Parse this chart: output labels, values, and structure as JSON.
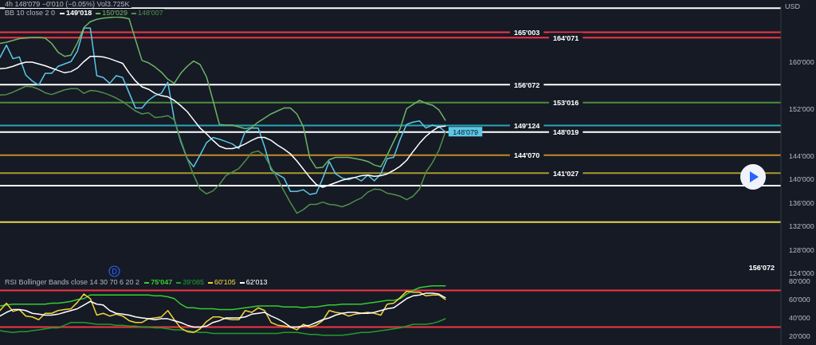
{
  "chart_data": [
    {
      "type": "line",
      "title": "4h 148'079 −0'010 (−0.05%) Vol3.725K",
      "subtitle": "BB 10 close 2 0",
      "ylabel": "USD",
      "categories": [
        null,
        null,
        null,
        null,
        null,
        null,
        null,
        null,
        null,
        null,
        null,
        null,
        null,
        null,
        null,
        null,
        null,
        null,
        null,
        null,
        null,
        null,
        null,
        null,
        null,
        null,
        null,
        null,
        null,
        null,
        null,
        null,
        null,
        null,
        null,
        null,
        null,
        null,
        null,
        null,
        null,
        null,
        null,
        null,
        null,
        null,
        null,
        null,
        null,
        null,
        null,
        null,
        null,
        null,
        null,
        null,
        null,
        null,
        null,
        null,
        null,
        null,
        null,
        null,
        null,
        null,
        null,
        null,
        null,
        null,
        null,
        null,
        null,
        null,
        null,
        null,
        null,
        null,
        null,
        null,
        null,
        null,
        null,
        null,
        null,
        null,
        null,
        null,
        null,
        null,
        null,
        null,
        null,
        null,
        null,
        null,
        null,
        null,
        null,
        null,
        null,
        null,
        null,
        null,
        null,
        null,
        null,
        null,
        null,
        null,
        null,
        null,
        null,
        null,
        null,
        null,
        null,
        null,
        null,
        null,
        null,
        null
      ],
      "series": [
        {
          "color": "#5ac8e6",
          "values": [
            160700,
            162800,
            160500,
            160800,
            157700,
            156700,
            156000,
            158000,
            158000,
            159200,
            159600,
            160000,
            161800,
            165700,
            165700,
            157600,
            157300,
            156300,
            157600,
            157300,
            154700,
            152100,
            152100,
            153400,
            154200,
            154600,
            156500,
            150200,
            146400,
            143500,
            142100,
            144100,
            146200,
            147100,
            146800,
            146400,
            146000,
            145200,
            148100,
            148700,
            148700,
            145500,
            141600,
            140800,
            140200,
            137900,
            137900,
            138200,
            137400,
            137600,
            140100,
            143000,
            140900,
            140200,
            139900,
            140300,
            139700,
            140700,
            139700,
            140900,
            143500,
            143700,
            146800,
            149300,
            149700,
            149900,
            148700,
            149200,
            148900,
            148079,
            null,
            null,
            null,
            null,
            null,
            null,
            null,
            null,
            null,
            null,
            null,
            null,
            null,
            null,
            null,
            null,
            null,
            null,
            null,
            null,
            null,
            null,
            null,
            null,
            null,
            null,
            null,
            null,
            null,
            null,
            null,
            null,
            null,
            null,
            null,
            null,
            null,
            null,
            null,
            null,
            null,
            null,
            null,
            null,
            null,
            null,
            null,
            null,
            null,
            null,
            null,
            null
          ],
          "value_labels": [
            null,
            null,
            null,
            null,
            null,
            null,
            null,
            null,
            null,
            null,
            null,
            null,
            null,
            null,
            null,
            null,
            null,
            null,
            null,
            null,
            null,
            null,
            null,
            null,
            null,
            null,
            null,
            null,
            null,
            null,
            null,
            null,
            null,
            null,
            null,
            null,
            null,
            null,
            null,
            null,
            null,
            null,
            null,
            null,
            null,
            null,
            null,
            null,
            null,
            null,
            null,
            null,
            null,
            null,
            null,
            null,
            null,
            null,
            null,
            null,
            null,
            null,
            null,
            null,
            null,
            null,
            null,
            null,
            null,
            "148'079",
            null,
            null,
            null,
            null,
            null,
            null,
            null,
            null,
            null,
            null,
            null,
            null,
            null,
            null,
            null,
            null,
            null,
            null,
            null,
            null,
            null,
            null,
            null,
            null,
            null,
            null,
            null,
            null,
            null,
            null,
            null,
            null,
            null,
            null,
            null,
            null,
            null,
            null,
            null,
            null,
            null,
            null,
            null,
            null,
            null,
            null,
            null,
            null,
            null,
            null,
            null,
            null
          ]
        },
        {
          "name": "149'018",
          "color": "#ffffff",
          "values": [
            158800,
            158900,
            159200,
            159600,
            159900,
            159900,
            159600,
            159300,
            158900,
            158500,
            158100,
            158300,
            158900,
            160000,
            160900,
            160900,
            160800,
            160500,
            160100,
            159700,
            158100,
            156700,
            155700,
            155300,
            154600,
            154200,
            154000,
            153400,
            152500,
            151500,
            150100,
            148700,
            147700,
            146600,
            145600,
            145200,
            145200,
            145500,
            146000,
            146600,
            147100,
            147100,
            146600,
            145800,
            145100,
            144300,
            143100,
            141700,
            140300,
            139100,
            138600,
            139000,
            139400,
            139800,
            140100,
            140300,
            140600,
            140700,
            140500,
            140600,
            140900,
            141500,
            142200,
            143200,
            144700,
            146100,
            147300,
            148200,
            148900,
            149018,
            null,
            null,
            null,
            null,
            null,
            null,
            null,
            null,
            null,
            null,
            null,
            null,
            null,
            null,
            null,
            null,
            null,
            null,
            null,
            null,
            null,
            null,
            null,
            null,
            null,
            null,
            null,
            null,
            null,
            null,
            null,
            null,
            null,
            null,
            null,
            null,
            null,
            null,
            null,
            null,
            null,
            null,
            null,
            null,
            null,
            null,
            null,
            null,
            null,
            null,
            null,
            null
          ]
        },
        {
          "name": "150'029",
          "color": "#6cb565",
          "values": [
            163100,
            163300,
            163600,
            163900,
            164000,
            164100,
            164100,
            164000,
            163100,
            161600,
            160900,
            161100,
            163200,
            165800,
            166800,
            167200,
            167400,
            167500,
            167600,
            167500,
            167300,
            163700,
            160200,
            159800,
            159100,
            158200,
            157000,
            156300,
            158000,
            159200,
            160100,
            159500,
            157400,
            153400,
            149300,
            149200,
            149200,
            148900,
            148600,
            148800,
            149700,
            150400,
            151100,
            151600,
            152100,
            152100,
            151100,
            148900,
            143600,
            141900,
            142000,
            143300,
            143700,
            143700,
            143700,
            143500,
            143300,
            143000,
            142400,
            142100,
            144100,
            146400,
            148600,
            152000,
            152700,
            153400,
            152900,
            152600,
            151800,
            150029,
            null,
            null,
            null,
            null,
            null,
            null,
            null,
            null,
            null,
            null,
            null,
            null,
            null,
            null,
            null,
            null,
            null,
            null,
            null,
            null,
            null,
            null,
            null,
            null,
            null,
            null,
            null,
            null,
            null,
            null,
            null,
            null,
            null,
            null,
            null,
            null,
            null,
            null,
            null,
            null,
            null,
            null,
            null,
            null,
            null,
            null,
            null,
            null,
            null,
            null,
            null,
            null
          ]
        },
        {
          "name": "148'007",
          "color": "#4f8f4a",
          "values": [
            154300,
            154400,
            154800,
            155300,
            155800,
            155700,
            155300,
            154700,
            154400,
            154800,
            155200,
            155400,
            155400,
            154600,
            155100,
            155000,
            154700,
            154300,
            153800,
            153200,
            152400,
            151600,
            151100,
            151300,
            150500,
            150600,
            150800,
            150100,
            146700,
            143500,
            140700,
            138300,
            137500,
            138000,
            139100,
            140600,
            141200,
            141800,
            143100,
            144500,
            144800,
            144000,
            142000,
            140100,
            138000,
            136000,
            134200,
            134800,
            135700,
            135700,
            136100,
            135700,
            135600,
            135300,
            135700,
            136300,
            136800,
            137800,
            138300,
            138200,
            137600,
            137400,
            137100,
            136500,
            137100,
            138300,
            141200,
            142800,
            144900,
            148007,
            null,
            null,
            null,
            null,
            null,
            null,
            null,
            null,
            null,
            null,
            null,
            null,
            null,
            null,
            null,
            null,
            null,
            null,
            null,
            null,
            null,
            null,
            null,
            null,
            null,
            null,
            null,
            null,
            null,
            null,
            null,
            null,
            null,
            null,
            null,
            null,
            null,
            null,
            null,
            null,
            null,
            null,
            null,
            null,
            null,
            null,
            null,
            null,
            null,
            null,
            null,
            null
          ]
        }
      ],
      "ylim": [
        123300,
        169400
      ],
      "yticks": [
        {
          "value": 124000,
          "label": "124'000"
        },
        {
          "value": 128000,
          "label": "128'000"
        },
        {
          "value": 132000,
          "label": "132'000"
        },
        {
          "value": 136000,
          "label": "136'000"
        },
        {
          "value": 140000,
          "label": "140'000"
        },
        {
          "value": 144000,
          "label": "144'000"
        },
        {
          "value": 152000,
          "label": "152'000"
        },
        {
          "value": 160000,
          "label": "160'000"
        }
      ],
      "ref_lines": [
        {
          "axis": "y",
          "value": 169100,
          "color": "#ffffff"
        },
        {
          "axis": "y",
          "value": 165003,
          "label": "165'003",
          "color": "#f23645"
        },
        {
          "axis": "y",
          "value": 164071,
          "label": "164'071",
          "color": "#f23645"
        },
        {
          "axis": "y",
          "value": 156072,
          "label": "156'072",
          "color": "#ffffff"
        },
        {
          "axis": "y",
          "value": 153016,
          "label": "153'016",
          "color": "#4d8f3a"
        },
        {
          "axis": "y",
          "value": 149124,
          "label": "149'124",
          "color": "#2aa3b8"
        },
        {
          "axis": "y",
          "value": 148019,
          "label": "148'019",
          "color": "#ffffff"
        },
        {
          "axis": "y",
          "value": 144070,
          "label": "144'070",
          "color": "#c08a24"
        },
        {
          "axis": "y",
          "value": 141027,
          "label": "141'027",
          "color": "#a89a2c"
        },
        {
          "axis": "y",
          "value": 138900,
          "color": "#ffffff"
        },
        {
          "axis": "y",
          "value": 132700,
          "color": "#e6d84a"
        }
      ],
      "annotations": [
        "156'072"
      ],
      "legend": "top left",
      "tick_labels": "y"
    },
    {
      "type": "line",
      "title": "RSI Bollinger Bands close 14 30 70 6 20 2",
      "categories": [
        null,
        null,
        null,
        null,
        null,
        null,
        null,
        null,
        null,
        null,
        null,
        null,
        null,
        null,
        null,
        null,
        null,
        null,
        null,
        null,
        null,
        null,
        null,
        null,
        null,
        null,
        null,
        null,
        null,
        null,
        null,
        null,
        null,
        null,
        null,
        null,
        null,
        null,
        null,
        null,
        null,
        null,
        null,
        null,
        null,
        null,
        null,
        null,
        null,
        null,
        null,
        null,
        null,
        null,
        null,
        null,
        null,
        null,
        null,
        null,
        null,
        null,
        null,
        null,
        null,
        null,
        null,
        null,
        null,
        null,
        null,
        null,
        null,
        null,
        null,
        null,
        null,
        null,
        null,
        null,
        null,
        null,
        null,
        null,
        null,
        null,
        null,
        null,
        null,
        null,
        null,
        null,
        null,
        null,
        null,
        null,
        null,
        null,
        null,
        null,
        null,
        null,
        null,
        null,
        null,
        null,
        null,
        null,
        null,
        null,
        null,
        null,
        null,
        null,
        null,
        null,
        null,
        null,
        null,
        null,
        null,
        null
      ],
      "series": [
        {
          "name": "75'047",
          "color": "#33cc33",
          "values": [
            53000,
            54000,
            55000,
            55000,
            55000,
            55000,
            55000,
            55000,
            56000,
            56000,
            57000,
            58000,
            60000,
            61000,
            65000,
            65000,
            65000,
            65000,
            65000,
            65000,
            65000,
            65000,
            65000,
            65000,
            64000,
            64000,
            63000,
            61000,
            55000,
            51000,
            51000,
            50000,
            50000,
            50000,
            49000,
            49000,
            49000,
            50000,
            51000,
            52000,
            53000,
            53000,
            53000,
            53000,
            52000,
            52000,
            52000,
            51000,
            52000,
            52000,
            53000,
            54000,
            54000,
            55000,
            55000,
            55000,
            55000,
            56000,
            57000,
            58000,
            59000,
            59000,
            61000,
            66000,
            70000,
            73000,
            74000,
            75000,
            75000,
            75047,
            null,
            null,
            null,
            null,
            null,
            null,
            null,
            null,
            null,
            null,
            null,
            null,
            null,
            null,
            null,
            null,
            null,
            null,
            null,
            null,
            null,
            null,
            null,
            null,
            null,
            null,
            null,
            null,
            null,
            null,
            null,
            null,
            null,
            null,
            null,
            null,
            null,
            null,
            null,
            null,
            null,
            null,
            null,
            null,
            null,
            null,
            null,
            null,
            null,
            null,
            null,
            null
          ]
        },
        {
          "name": "39'085",
          "color": "#1f9e2a",
          "values": [
            26000,
            25000,
            24000,
            25000,
            25000,
            26000,
            27000,
            28000,
            29000,
            29000,
            32000,
            35000,
            35000,
            35000,
            34000,
            33000,
            33000,
            33000,
            32000,
            32000,
            31000,
            31000,
            30000,
            30000,
            29000,
            29000,
            28000,
            27000,
            27000,
            26000,
            25000,
            24000,
            24000,
            23000,
            23000,
            23000,
            23000,
            23000,
            23000,
            23000,
            23000,
            23000,
            23000,
            23000,
            24000,
            24000,
            24000,
            23000,
            22000,
            22000,
            21000,
            21000,
            21000,
            21000,
            22000,
            23000,
            24000,
            24000,
            25000,
            26000,
            27000,
            28000,
            29000,
            31000,
            33000,
            33000,
            33000,
            34000,
            36000,
            39085,
            null,
            null,
            null,
            null,
            null,
            null,
            null,
            null,
            null,
            null,
            null,
            null,
            null,
            null,
            null,
            null,
            null,
            null,
            null,
            null,
            null,
            null,
            null,
            null,
            null,
            null,
            null,
            null,
            null,
            null,
            null,
            null,
            null,
            null,
            null,
            null,
            null,
            null,
            null,
            null,
            null,
            null,
            null,
            null,
            null,
            null,
            null,
            null,
            null,
            null,
            null,
            null
          ]
        },
        {
          "name": "60'105",
          "color": "#f0d43a",
          "values": [
            48000,
            56000,
            47000,
            49000,
            42000,
            41000,
            38000,
            45000,
            45000,
            48000,
            49000,
            50000,
            57000,
            66000,
            61000,
            43000,
            45000,
            42000,
            44000,
            42000,
            37000,
            35000,
            35000,
            39000,
            40000,
            41000,
            48000,
            38000,
            29000,
            25000,
            24000,
            28000,
            36000,
            41000,
            41000,
            39000,
            38000,
            38000,
            48000,
            46000,
            51000,
            48000,
            35000,
            32000,
            31000,
            30000,
            27000,
            33000,
            30000,
            32000,
            37000,
            48000,
            46000,
            45000,
            42000,
            44000,
            45000,
            46000,
            45000,
            43000,
            55000,
            56000,
            62000,
            69000,
            68000,
            68000,
            64000,
            65000,
            65000,
            60105,
            null,
            null,
            null,
            null,
            null,
            null,
            null,
            null,
            null,
            null,
            null,
            null,
            null,
            null,
            null,
            null,
            null,
            null,
            null,
            null,
            null,
            null,
            null,
            null,
            null,
            null,
            null,
            null,
            null,
            null,
            null,
            null,
            null,
            null,
            null,
            null,
            null,
            null,
            null,
            null,
            null,
            null,
            null,
            null,
            null,
            null,
            null,
            null,
            null,
            null,
            null,
            null
          ]
        },
        {
          "name": "62'013",
          "color": "#ffffff",
          "values": [
            42000,
            46000,
            49000,
            49000,
            48000,
            45000,
            44000,
            43000,
            43000,
            44000,
            46000,
            48000,
            50000,
            54000,
            58000,
            55000,
            54000,
            48000,
            45000,
            44000,
            43000,
            41000,
            40000,
            39000,
            38000,
            39000,
            39000,
            37000,
            35000,
            32000,
            30000,
            30000,
            31000,
            35000,
            37000,
            40000,
            40000,
            40000,
            41000,
            44000,
            45000,
            46000,
            42000,
            39000,
            35000,
            30000,
            30000,
            31000,
            32000,
            35000,
            38000,
            40000,
            43000,
            45000,
            46000,
            46000,
            45000,
            45000,
            46000,
            48000,
            50000,
            51000,
            56000,
            61000,
            64000,
            65000,
            67000,
            67000,
            66000,
            62013,
            null,
            null,
            null,
            null,
            null,
            null,
            null,
            null,
            null,
            null,
            null,
            null,
            null,
            null,
            null,
            null,
            null,
            null,
            null,
            null,
            null,
            null,
            null,
            null,
            null,
            null,
            null,
            null,
            null,
            null,
            null,
            null,
            null,
            null,
            null,
            null,
            null,
            null,
            null,
            null,
            null,
            null,
            null,
            null,
            null,
            null,
            null,
            null,
            null,
            null,
            null,
            null
          ]
        }
      ],
      "ylim": [
        10400,
        84300
      ],
      "yticks": [
        {
          "value": 20000,
          "label": "20'000"
        },
        {
          "value": 40000,
          "label": "40'000"
        },
        {
          "value": 60000,
          "label": "60'000"
        },
        {
          "value": 80000,
          "label": "80'000"
        }
      ],
      "ref_lines": [
        {
          "axis": "y",
          "value": 70000,
          "color": "#f23645"
        },
        {
          "axis": "y",
          "value": 30000,
          "color": "#f23645"
        }
      ],
      "legend": "top left",
      "tick_labels": "y"
    }
  ]
}
